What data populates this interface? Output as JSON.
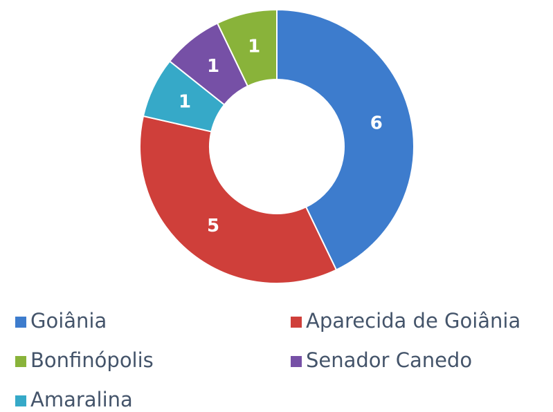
{
  "chart_data": {
    "type": "donut",
    "categories": [
      "Goiânia",
      "Aparecida de Goiânia",
      "Amaralina",
      "Senador Canedo",
      "Bonfinópolis"
    ],
    "values": [
      6,
      5,
      1,
      1,
      1
    ],
    "colors": [
      "#3d7ccd",
      "#cf3f3a",
      "#36a9c8",
      "#7650a6",
      "#89b33a"
    ]
  }
}
